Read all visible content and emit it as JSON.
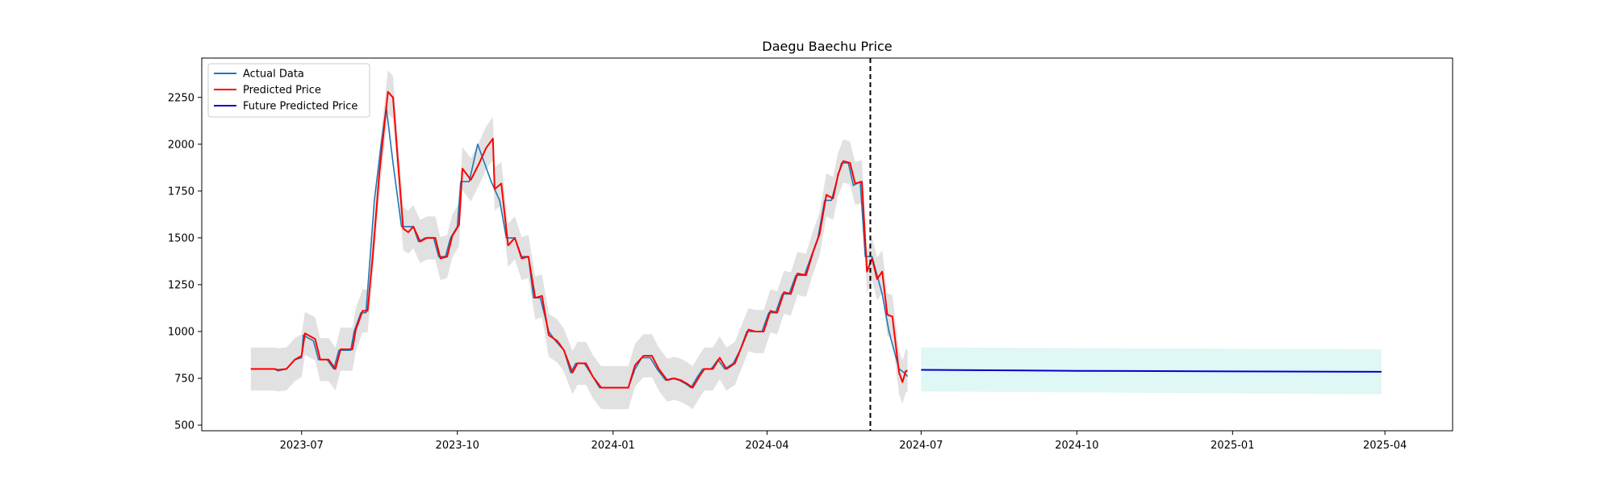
{
  "chart_data": {
    "type": "line",
    "title": "Daegu Baechu Price",
    "xlabel": "",
    "ylabel": "",
    "x_ticks": [
      "2023-07",
      "2023-10",
      "2024-01",
      "2024-04",
      "2024-07",
      "2024-10",
      "2025-01",
      "2025-04"
    ],
    "y_ticks": [
      500,
      750,
      1000,
      1250,
      1500,
      1750,
      2000,
      2250
    ],
    "xlim": [
      "2023-05-03",
      "2025-05-11"
    ],
    "ylim": [
      470,
      2460
    ],
    "cutoff_date": "2024-06-01",
    "grid": false,
    "legend": {
      "position": "top-left",
      "entries": [
        "Actual Data",
        "Predicted Price",
        "Future Predicted Price"
      ]
    },
    "colors": {
      "actual": "#1f77b4",
      "predicted": "#ff0000",
      "future": "#0000cc",
      "band": "#bdbdbd",
      "future_band": "#bff0ec"
    },
    "band_halfwidth": 115,
    "series": [
      {
        "name": "Actual Data",
        "points": [
          [
            "2023-06-01",
            800
          ],
          [
            "2023-06-15",
            800
          ],
          [
            "2023-06-17",
            790
          ],
          [
            "2023-06-22",
            800
          ],
          [
            "2023-06-27",
            850
          ],
          [
            "2023-07-01",
            860
          ],
          [
            "2023-07-02",
            980
          ],
          [
            "2023-07-08",
            950
          ],
          [
            "2023-07-11",
            850
          ],
          [
            "2023-07-16",
            850
          ],
          [
            "2023-07-20",
            800
          ],
          [
            "2023-07-23",
            900
          ],
          [
            "2023-07-30",
            900
          ],
          [
            "2023-08-01",
            1000
          ],
          [
            "2023-08-05",
            1100
          ],
          [
            "2023-08-08",
            1100
          ],
          [
            "2023-08-13",
            1700
          ],
          [
            "2023-08-17",
            2000
          ],
          [
            "2023-08-20",
            2200
          ],
          [
            "2023-08-24",
            1900
          ],
          [
            "2023-08-29",
            1560
          ],
          [
            "2023-09-01",
            1560
          ],
          [
            "2023-09-05",
            1560
          ],
          [
            "2023-09-08",
            1480
          ],
          [
            "2023-09-12",
            1500
          ],
          [
            "2023-09-17",
            1500
          ],
          [
            "2023-09-20",
            1400
          ],
          [
            "2023-09-24",
            1400
          ],
          [
            "2023-09-27",
            1500
          ],
          [
            "2023-10-01",
            1560
          ],
          [
            "2023-10-03",
            1800
          ],
          [
            "2023-10-08",
            1800
          ],
          [
            "2023-10-13",
            2000
          ],
          [
            "2023-10-17",
            1900
          ],
          [
            "2023-10-21",
            1800
          ],
          [
            "2023-10-26",
            1700
          ],
          [
            "2023-10-30",
            1500
          ],
          [
            "2023-11-04",
            1500
          ],
          [
            "2023-11-08",
            1400
          ],
          [
            "2023-11-12",
            1400
          ],
          [
            "2023-11-15",
            1180
          ],
          [
            "2023-11-19",
            1180
          ],
          [
            "2023-11-24",
            1000
          ],
          [
            "2023-11-28",
            950
          ],
          [
            "2023-12-03",
            900
          ],
          [
            "2023-12-07",
            780
          ],
          [
            "2023-12-10",
            830
          ],
          [
            "2023-12-15",
            830
          ],
          [
            "2023-12-20",
            760
          ],
          [
            "2023-12-24",
            700
          ],
          [
            "2024-01-02",
            700
          ],
          [
            "2024-01-10",
            700
          ],
          [
            "2024-01-14",
            800
          ],
          [
            "2024-01-18",
            860
          ],
          [
            "2024-01-23",
            860
          ],
          [
            "2024-01-27",
            800
          ],
          [
            "2024-02-01",
            740
          ],
          [
            "2024-02-05",
            750
          ],
          [
            "2024-02-09",
            740
          ],
          [
            "2024-02-13",
            720
          ],
          [
            "2024-02-16",
            700
          ],
          [
            "2024-02-20",
            760
          ],
          [
            "2024-02-23",
            800
          ],
          [
            "2024-02-28",
            800
          ],
          [
            "2024-03-03",
            850
          ],
          [
            "2024-03-07",
            800
          ],
          [
            "2024-03-12",
            830
          ],
          [
            "2024-03-16",
            900
          ],
          [
            "2024-03-20",
            1000
          ],
          [
            "2024-03-24",
            1000
          ],
          [
            "2024-03-29",
            1000
          ],
          [
            "2024-04-02",
            1100
          ],
          [
            "2024-04-06",
            1100
          ],
          [
            "2024-04-10",
            1200
          ],
          [
            "2024-04-14",
            1200
          ],
          [
            "2024-04-18",
            1300
          ],
          [
            "2024-04-23",
            1300
          ],
          [
            "2024-04-27",
            1400
          ],
          [
            "2024-05-01",
            1500
          ],
          [
            "2024-05-05",
            1700
          ],
          [
            "2024-05-09",
            1700
          ],
          [
            "2024-05-12",
            1800
          ],
          [
            "2024-05-15",
            1900
          ],
          [
            "2024-05-19",
            1900
          ],
          [
            "2024-05-22",
            1780
          ],
          [
            "2024-05-26",
            1800
          ],
          [
            "2024-05-29",
            1400
          ],
          [
            "2024-06-02",
            1400
          ],
          [
            "2024-06-05",
            1300
          ],
          [
            "2024-06-08",
            1200
          ],
          [
            "2024-06-12",
            1000
          ],
          [
            "2024-06-15",
            900
          ],
          [
            "2024-06-18",
            800
          ],
          [
            "2024-06-21",
            780
          ],
          [
            "2024-06-23",
            760
          ]
        ]
      },
      {
        "name": "Predicted Price",
        "points": [
          [
            "2023-06-01",
            800
          ],
          [
            "2023-06-15",
            800
          ],
          [
            "2023-06-17",
            795
          ],
          [
            "2023-06-22",
            800
          ],
          [
            "2023-06-27",
            850
          ],
          [
            "2023-07-01",
            870
          ],
          [
            "2023-07-03",
            990
          ],
          [
            "2023-07-09",
            960
          ],
          [
            "2023-07-12",
            850
          ],
          [
            "2023-07-17",
            850
          ],
          [
            "2023-07-21",
            800
          ],
          [
            "2023-07-24",
            905
          ],
          [
            "2023-07-31",
            905
          ],
          [
            "2023-08-02",
            1010
          ],
          [
            "2023-08-06",
            1110
          ],
          [
            "2023-08-09",
            1110
          ],
          [
            "2023-08-12",
            1400
          ],
          [
            "2023-08-16",
            1850
          ],
          [
            "2023-08-21",
            2280
          ],
          [
            "2023-08-24",
            2250
          ],
          [
            "2023-08-30",
            1550
          ],
          [
            "2023-09-02",
            1530
          ],
          [
            "2023-09-05",
            1560
          ],
          [
            "2023-09-09",
            1480
          ],
          [
            "2023-09-13",
            1500
          ],
          [
            "2023-09-18",
            1500
          ],
          [
            "2023-09-21",
            1390
          ],
          [
            "2023-09-25",
            1400
          ],
          [
            "2023-09-28",
            1510
          ],
          [
            "2023-10-02",
            1570
          ],
          [
            "2023-10-04",
            1870
          ],
          [
            "2023-10-09",
            1810
          ],
          [
            "2023-10-14",
            1900
          ],
          [
            "2023-10-18",
            1980
          ],
          [
            "2023-10-22",
            2030
          ],
          [
            "2023-10-23",
            1760
          ],
          [
            "2023-10-27",
            1790
          ],
          [
            "2023-10-31",
            1460
          ],
          [
            "2023-11-04",
            1500
          ],
          [
            "2023-11-08",
            1390
          ],
          [
            "2023-11-12",
            1400
          ],
          [
            "2023-11-16",
            1180
          ],
          [
            "2023-11-20",
            1190
          ],
          [
            "2023-11-24",
            980
          ],
          [
            "2023-11-29",
            950
          ],
          [
            "2023-12-03",
            900
          ],
          [
            "2023-12-08",
            780
          ],
          [
            "2023-12-11",
            830
          ],
          [
            "2023-12-16",
            830
          ],
          [
            "2023-12-20",
            760
          ],
          [
            "2023-12-25",
            700
          ],
          [
            "2024-01-02",
            700
          ],
          [
            "2024-01-10",
            700
          ],
          [
            "2024-01-14",
            820
          ],
          [
            "2024-01-19",
            870
          ],
          [
            "2024-01-24",
            870
          ],
          [
            "2024-01-28",
            800
          ],
          [
            "2024-02-02",
            740
          ],
          [
            "2024-02-06",
            750
          ],
          [
            "2024-02-10",
            740
          ],
          [
            "2024-02-14",
            720
          ],
          [
            "2024-02-17",
            700
          ],
          [
            "2024-02-21",
            760
          ],
          [
            "2024-02-24",
            800
          ],
          [
            "2024-02-29",
            800
          ],
          [
            "2024-03-04",
            860
          ],
          [
            "2024-03-08",
            800
          ],
          [
            "2024-03-13",
            830
          ],
          [
            "2024-03-17",
            920
          ],
          [
            "2024-03-21",
            1010
          ],
          [
            "2024-03-25",
            1000
          ],
          [
            "2024-03-30",
            1000
          ],
          [
            "2024-04-03",
            1110
          ],
          [
            "2024-04-07",
            1100
          ],
          [
            "2024-04-11",
            1210
          ],
          [
            "2024-04-15",
            1200
          ],
          [
            "2024-04-19",
            1310
          ],
          [
            "2024-04-24",
            1300
          ],
          [
            "2024-04-28",
            1420
          ],
          [
            "2024-05-02",
            1520
          ],
          [
            "2024-05-06",
            1730
          ],
          [
            "2024-05-10",
            1710
          ],
          [
            "2024-05-13",
            1840
          ],
          [
            "2024-05-16",
            1910
          ],
          [
            "2024-05-20",
            1900
          ],
          [
            "2024-05-23",
            1790
          ],
          [
            "2024-05-27",
            1800
          ],
          [
            "2024-05-30",
            1320
          ],
          [
            "2024-06-02",
            1390
          ],
          [
            "2024-06-05",
            1280
          ],
          [
            "2024-06-08",
            1320
          ],
          [
            "2024-06-11",
            1090
          ],
          [
            "2024-06-14",
            1080
          ],
          [
            "2024-06-18",
            780
          ],
          [
            "2024-06-20",
            730
          ],
          [
            "2024-06-22",
            790
          ],
          [
            "2024-06-23",
            790
          ]
        ]
      },
      {
        "name": "Future Predicted Price",
        "points": [
          [
            "2024-07-01",
            795
          ],
          [
            "2024-10-01",
            790
          ],
          [
            "2025-01-01",
            787
          ],
          [
            "2025-03-30",
            785
          ]
        ],
        "band_upper": [
          [
            "2024-07-01",
            915
          ],
          [
            "2025-03-30",
            905
          ]
        ],
        "band_lower": [
          [
            "2024-07-01",
            680
          ],
          [
            "2025-03-30",
            665
          ]
        ]
      }
    ]
  }
}
